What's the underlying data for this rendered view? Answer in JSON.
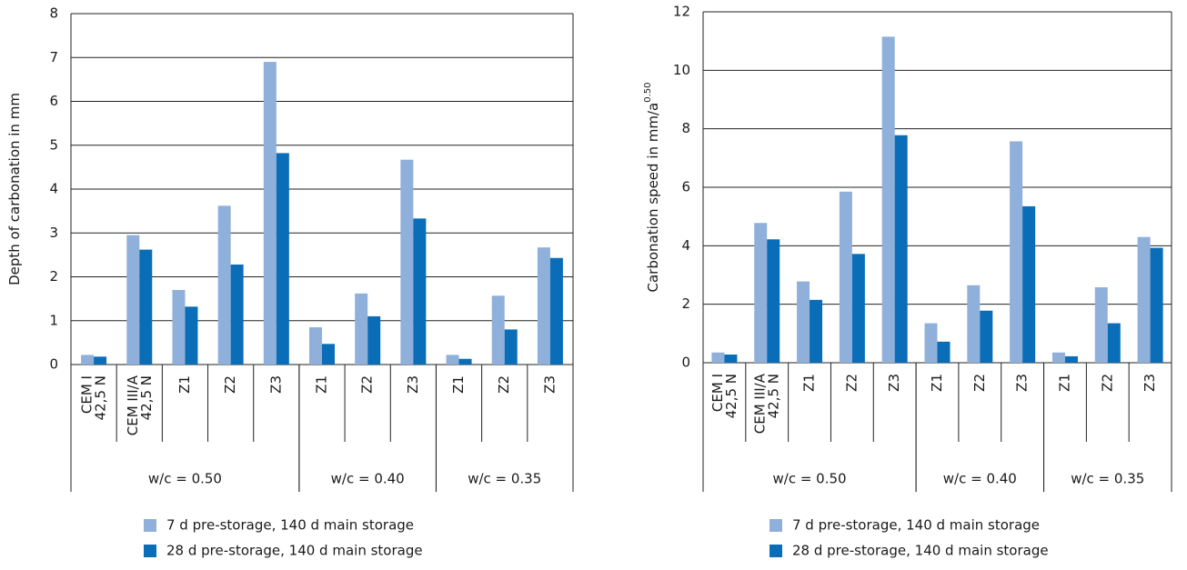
{
  "chart_data": [
    {
      "type": "bar",
      "y_label": "Depth of carbonation in mm",
      "groups": [
        {
          "name": "w/c = 0.50",
          "categories": [
            "CEM I\n42,5 N",
            "CEM III/A\n42,5 N",
            "Z1",
            "Z2",
            "Z3"
          ]
        },
        {
          "name": "w/c = 0.40",
          "categories": [
            "Z1",
            "Z2",
            "Z3"
          ]
        },
        {
          "name": "w/c = 0.35",
          "categories": [
            "Z1",
            "Z2",
            "Z3"
          ]
        }
      ],
      "series": [
        {
          "name": "7 d pre-storage, 140 d main storage",
          "color": "#8fb0da",
          "values": [
            0.22,
            2.95,
            1.7,
            3.62,
            6.9,
            0.85,
            1.62,
            4.67,
            0.22,
            1.57,
            2.67
          ]
        },
        {
          "name": "28 d pre-storage, 140 d main storage",
          "color": "#0a6db7",
          "values": [
            0.18,
            2.62,
            1.32,
            2.28,
            4.82,
            0.47,
            1.1,
            3.33,
            0.13,
            0.8,
            2.43
          ]
        }
      ],
      "ylim": [
        0,
        8
      ],
      "yticks": [
        0,
        1,
        2,
        3,
        4,
        5,
        6,
        7,
        8
      ],
      "grid": true
    },
    {
      "type": "bar",
      "y_label": "Carbonation speed in mm/a",
      "y_label_sup": "0.50",
      "groups": [
        {
          "name": "w/c = 0.50",
          "categories": [
            "CEM I\n42,5 N",
            "CEM III/A\n42,5 N",
            "Z1",
            "Z2",
            "Z3"
          ]
        },
        {
          "name": "w/c = 0.40",
          "categories": [
            "Z1",
            "Z2",
            "Z3"
          ]
        },
        {
          "name": "w/c = 0.35",
          "categories": [
            "Z1",
            "Z2",
            "Z3"
          ]
        }
      ],
      "series": [
        {
          "name": "7 d pre-storage, 140 d main storage",
          "color": "#8fb0da",
          "values": [
            0.35,
            4.78,
            2.78,
            5.85,
            11.15,
            1.35,
            2.65,
            7.57,
            0.35,
            2.58,
            4.3
          ]
        },
        {
          "name": "28 d pre-storage, 140 d main storage",
          "color": "#0a6db7",
          "values": [
            0.28,
            4.22,
            2.15,
            3.72,
            7.78,
            0.72,
            1.78,
            5.35,
            0.22,
            1.35,
            3.93
          ]
        }
      ],
      "ylim": [
        0,
        12
      ],
      "yticks": [
        0,
        2,
        4,
        6,
        8,
        10,
        12
      ],
      "grid": true
    }
  ]
}
